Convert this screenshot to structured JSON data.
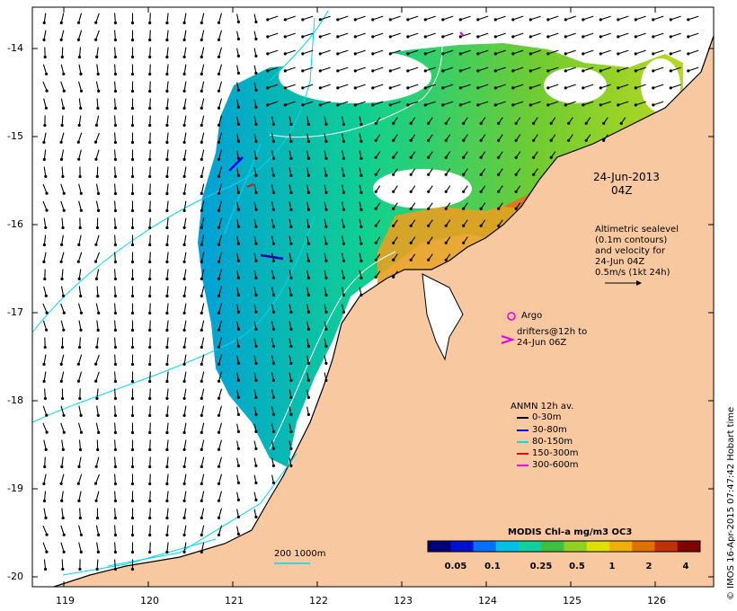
{
  "map": {
    "date_label": "24-Jun-2013",
    "time_label": "04Z",
    "altimetry_lines": [
      "Altimetric sealevel",
      "(0.1m contours)",
      "and velocity for",
      "24-Jun 04Z",
      "0.5m/s (1kt 24h)"
    ],
    "argo_label": "Argo",
    "drifters_lines": [
      "drifters@12h to",
      "24-Jun 06Z"
    ],
    "anmn_title": "ANMN 12h av.",
    "anmn_entries": [
      {
        "label": "0-30m",
        "color": "#000000"
      },
      {
        "label": "30-80m",
        "color": "#0000ff"
      },
      {
        "label": "80-150m",
        "color": "#00e0e0"
      },
      {
        "label": "150-300m",
        "color": "#ff0000"
      },
      {
        "label": "300-600m",
        "color": "#ff00ff"
      }
    ],
    "colorbar_title": "MODIS Chl-a mg/m3 OC3",
    "colorbar_ticks": [
      "0.05",
      "0.1",
      "0.25",
      "0.5",
      "1",
      "2",
      "4"
    ],
    "colorbar_colors": [
      "#00007a",
      "#0010d0",
      "#0070ff",
      "#00c0e8",
      "#10d0a0",
      "#40c040",
      "#90d020",
      "#e0e000",
      "#f0b000",
      "#e07000",
      "#c03000",
      "#800000"
    ],
    "bathy_label": "200  1000m",
    "copyright": "© IMOS 16-Apr-2015 07:47:42 Hobart time",
    "lon_ticks": [
      "119",
      "120",
      "121",
      "122",
      "123",
      "124",
      "125",
      "126"
    ],
    "lat_ticks": [
      "-14",
      "-15",
      "-16",
      "-17",
      "-18",
      "-19",
      "-20"
    ],
    "colors": {
      "land": "#f8c8a0",
      "contour": "#00d8f0",
      "argo": "#e000e0"
    }
  }
}
